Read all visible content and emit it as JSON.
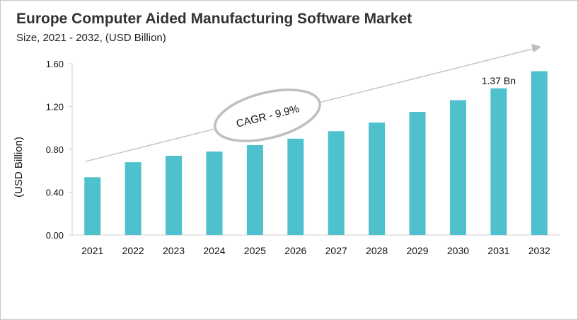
{
  "chart_data": {
    "type": "bar",
    "title": "Europe Computer Aided Manufacturing Software Market",
    "subtitle": "Size, 2021 - 2032, (USD Billion)",
    "ylabel": "(USD Billion)",
    "xlabel": "",
    "ylim": [
      0,
      1.6
    ],
    "yticks": [
      "0.00",
      "0.40",
      "0.80",
      "1.20",
      "1.60"
    ],
    "categories": [
      "2021",
      "2022",
      "2023",
      "2024",
      "2025",
      "2026",
      "2027",
      "2028",
      "2029",
      "2030",
      "2031",
      "2032"
    ],
    "values": [
      0.54,
      0.68,
      0.74,
      0.78,
      0.84,
      0.9,
      0.97,
      1.05,
      1.15,
      1.26,
      1.37,
      1.53
    ],
    "bar_color": "#4fc1cd",
    "grid": false,
    "annotations": {
      "cagr": "CAGR - 9.9%",
      "value_label": "1.37 Bn",
      "value_label_category": "2031"
    }
  }
}
